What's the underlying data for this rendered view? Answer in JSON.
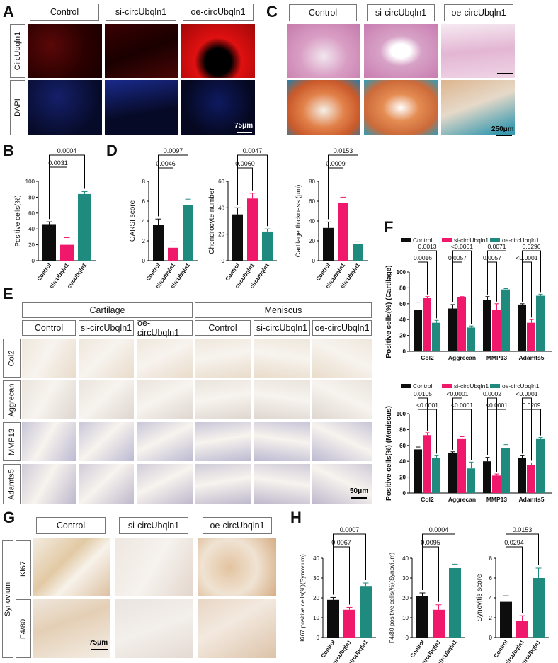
{
  "panels": {
    "A": "A",
    "B": "B",
    "C": "C",
    "D": "D",
    "E": "E",
    "F": "F",
    "G": "G",
    "H": "H"
  },
  "groups": [
    "Control",
    "si-circUbqln1",
    "oe-circUbqln1"
  ],
  "panelA": {
    "rows": [
      "CircUbqln1",
      "DAPI"
    ],
    "scale": "75μm"
  },
  "panelC": {
    "scale": "250μm"
  },
  "panelE": {
    "sections": [
      "Cartilage",
      "Meniscus"
    ],
    "rows": [
      "Col2",
      "Aggrecan",
      "MMP13",
      "Adamts5"
    ],
    "scale": "50μm"
  },
  "panelG": {
    "tissue": "Synovium",
    "rows": [
      "Ki67",
      "F4/80"
    ],
    "scale": "75μm"
  },
  "colors": {
    "control": "#0d0d0d",
    "si": "#f0186b",
    "oe": "#1f8a7e",
    "fluor_red": "#d21010",
    "fluor_blue": "#1a2a8c"
  },
  "chart_data": [
    {
      "id": "B",
      "type": "bar",
      "categories": [
        "Control",
        "si-circUbqln1",
        "oe-circUbqln1"
      ],
      "values": [
        46,
        20,
        84
      ],
      "errors": [
        3,
        9,
        3
      ],
      "ylabel": "Positive cells(%)",
      "ylim": [
        0,
        100
      ],
      "yticks": [
        0,
        20,
        40,
        60,
        80,
        100
      ],
      "sig": [
        {
          "a": 0,
          "b": 1,
          "p": "0.0031"
        },
        {
          "a": 0,
          "b": 2,
          "p": "0.0004"
        }
      ]
    },
    {
      "id": "D1",
      "type": "bar",
      "categories": [
        "Control",
        "si-circUbqln1",
        "oe-circUbqln1"
      ],
      "values": [
        3.6,
        1.3,
        5.6
      ],
      "errors": [
        0.6,
        0.6,
        0.6
      ],
      "ylabel": "OARSI score",
      "ylim": [
        0,
        8
      ],
      "yticks": [
        0,
        2,
        4,
        6,
        8
      ],
      "sig": [
        {
          "a": 0,
          "b": 1,
          "p": "0.0046"
        },
        {
          "a": 0,
          "b": 2,
          "p": "0.0097"
        }
      ]
    },
    {
      "id": "D2",
      "type": "bar",
      "categories": [
        "Control",
        "si-circUbqln1",
        "oe-circUbqln1"
      ],
      "values": [
        35,
        47,
        22
      ],
      "errors": [
        5,
        4,
        2
      ],
      "ylabel": "Chondrocyte number",
      "ylim": [
        0,
        60
      ],
      "yticks": [
        0,
        20,
        40,
        60
      ],
      "sig": [
        {
          "a": 0,
          "b": 1,
          "p": "0.0060"
        },
        {
          "a": 0,
          "b": 2,
          "p": "0.0047"
        }
      ]
    },
    {
      "id": "D3",
      "type": "bar",
      "categories": [
        "Control",
        "si-circUbqln1",
        "oe-circUbqln1"
      ],
      "values": [
        33,
        58,
        17
      ],
      "errors": [
        6,
        6,
        2
      ],
      "ylabel": "Cartilage thickness (μm)",
      "ylim": [
        0,
        80
      ],
      "yticks": [
        0,
        20,
        40,
        60,
        80
      ],
      "sig": [
        {
          "a": 0,
          "b": 1,
          "p": "0.0009"
        },
        {
          "a": 0,
          "b": 2,
          "p": "0.0153"
        }
      ]
    },
    {
      "id": "F1",
      "type": "grouped-bar",
      "categories": [
        "Col2",
        "Aggrecan",
        "MMP13",
        "Adamts5"
      ],
      "series": [
        {
          "name": "Control",
          "values": [
            52,
            54,
            65,
            59
          ],
          "errors": [
            10,
            5,
            4,
            1
          ]
        },
        {
          "name": "si-circUbqln1",
          "values": [
            67,
            68,
            52,
            36
          ],
          "errors": [
            2,
            1,
            8,
            4
          ]
        },
        {
          "name": "oe-circUbqln1",
          "values": [
            36,
            30,
            78,
            70
          ],
          "errors": [
            3,
            2,
            1,
            2
          ]
        }
      ],
      "ylabel": "Positive cells(%) (Cartilage)",
      "ylim": [
        0,
        100
      ],
      "yticks": [
        0,
        20,
        40,
        60,
        80,
        100
      ],
      "sig": [
        {
          "g": 0,
          "a": 0,
          "b": 1,
          "p": "0.0016",
          "lvl": 0
        },
        {
          "g": 0,
          "a": 0,
          "b": 2,
          "p": "0.0013",
          "lvl": 1
        },
        {
          "g": 1,
          "a": 0,
          "b": 1,
          "p": "0.0057",
          "lvl": 0
        },
        {
          "g": 1,
          "a": 0,
          "b": 2,
          "p": "<0.0001",
          "lvl": 1
        },
        {
          "g": 2,
          "a": 0,
          "b": 1,
          "p": "0.0057",
          "lvl": 0
        },
        {
          "g": 2,
          "a": 0,
          "b": 2,
          "p": "0.0071",
          "lvl": 1
        },
        {
          "g": 3,
          "a": 0,
          "b": 1,
          "p": "<0.0001",
          "lvl": 0
        },
        {
          "g": 3,
          "a": 0,
          "b": 2,
          "p": "0.0296",
          "lvl": 1
        }
      ]
    },
    {
      "id": "F2",
      "type": "grouped-bar",
      "categories": [
        "Col2",
        "Aggrecan",
        "MMP13",
        "Adamts5"
      ],
      "series": [
        {
          "name": "Control",
          "values": [
            55,
            50,
            40,
            44
          ],
          "errors": [
            3,
            2,
            5,
            3
          ]
        },
        {
          "name": "si-circUbqln1",
          "values": [
            73,
            68,
            22,
            35
          ],
          "errors": [
            3,
            3,
            2,
            3
          ]
        },
        {
          "name": "oe-circUbqln1",
          "values": [
            44,
            31,
            57,
            68
          ],
          "errors": [
            3,
            8,
            4,
            2
          ]
        }
      ],
      "ylabel": "Positive cells(%) (Meniscus)",
      "ylim": [
        0,
        100
      ],
      "yticks": [
        0,
        20,
        40,
        60,
        80,
        100
      ],
      "sig": [
        {
          "g": 0,
          "a": 0,
          "b": 1,
          "p": "0.0105",
          "lvl": 1
        },
        {
          "g": 0,
          "a": 0,
          "b": 2,
          "p": "<0.0001",
          "lvl": 0
        },
        {
          "g": 1,
          "a": 0,
          "b": 1,
          "p": "<0.0001",
          "lvl": 1
        },
        {
          "g": 1,
          "a": 0,
          "b": 2,
          "p": "<0.0001",
          "lvl": 0
        },
        {
          "g": 2,
          "a": 0,
          "b": 1,
          "p": "0.0002",
          "lvl": 1
        },
        {
          "g": 2,
          "a": 0,
          "b": 2,
          "p": "<0.0001",
          "lvl": 0
        },
        {
          "g": 3,
          "a": 0,
          "b": 1,
          "p": "<0.0001",
          "lvl": 1
        },
        {
          "g": 3,
          "a": 0,
          "b": 2,
          "p": "0.0209",
          "lvl": 0
        }
      ]
    },
    {
      "id": "H1",
      "type": "bar",
      "categories": [
        "Control",
        "si-circUbqln1",
        "oe-circUbqln1"
      ],
      "values": [
        19,
        14,
        26
      ],
      "errors": [
        1.2,
        1.2,
        1.5
      ],
      "ylabel": "Ki67 positive cells(%)(Synovium)",
      "ylim": [
        0,
        40
      ],
      "yticks": [
        0,
        10,
        20,
        30,
        40
      ],
      "sig": [
        {
          "a": 0,
          "b": 1,
          "p": "0.0067"
        },
        {
          "a": 0,
          "b": 2,
          "p": "0.0007"
        }
      ]
    },
    {
      "id": "H2",
      "type": "bar",
      "categories": [
        "Control",
        "si-circUbqln1",
        "oe-circUbqln1"
      ],
      "values": [
        21,
        14,
        35
      ],
      "errors": [
        1.5,
        2.5,
        2
      ],
      "ylabel": "F4/80 positive cells(%)(Synovium)",
      "ylim": [
        0,
        40
      ],
      "yticks": [
        0,
        10,
        20,
        30,
        40
      ],
      "sig": [
        {
          "a": 0,
          "b": 1,
          "p": "0.0095"
        },
        {
          "a": 0,
          "b": 2,
          "p": "0.0004"
        }
      ]
    },
    {
      "id": "H3",
      "type": "bar",
      "categories": [
        "Control",
        "si-circUbqln1",
        "oe-circUbqln1"
      ],
      "values": [
        3.6,
        1.7,
        6
      ],
      "errors": [
        0.6,
        0.5,
        1.0
      ],
      "ylabel": "Synovitis score",
      "ylim": [
        0,
        8
      ],
      "yticks": [
        0,
        2,
        4,
        6,
        8
      ],
      "sig": [
        {
          "a": 0,
          "b": 1,
          "p": "0.0294"
        },
        {
          "a": 0,
          "b": 2,
          "p": "0.0153"
        }
      ]
    }
  ]
}
